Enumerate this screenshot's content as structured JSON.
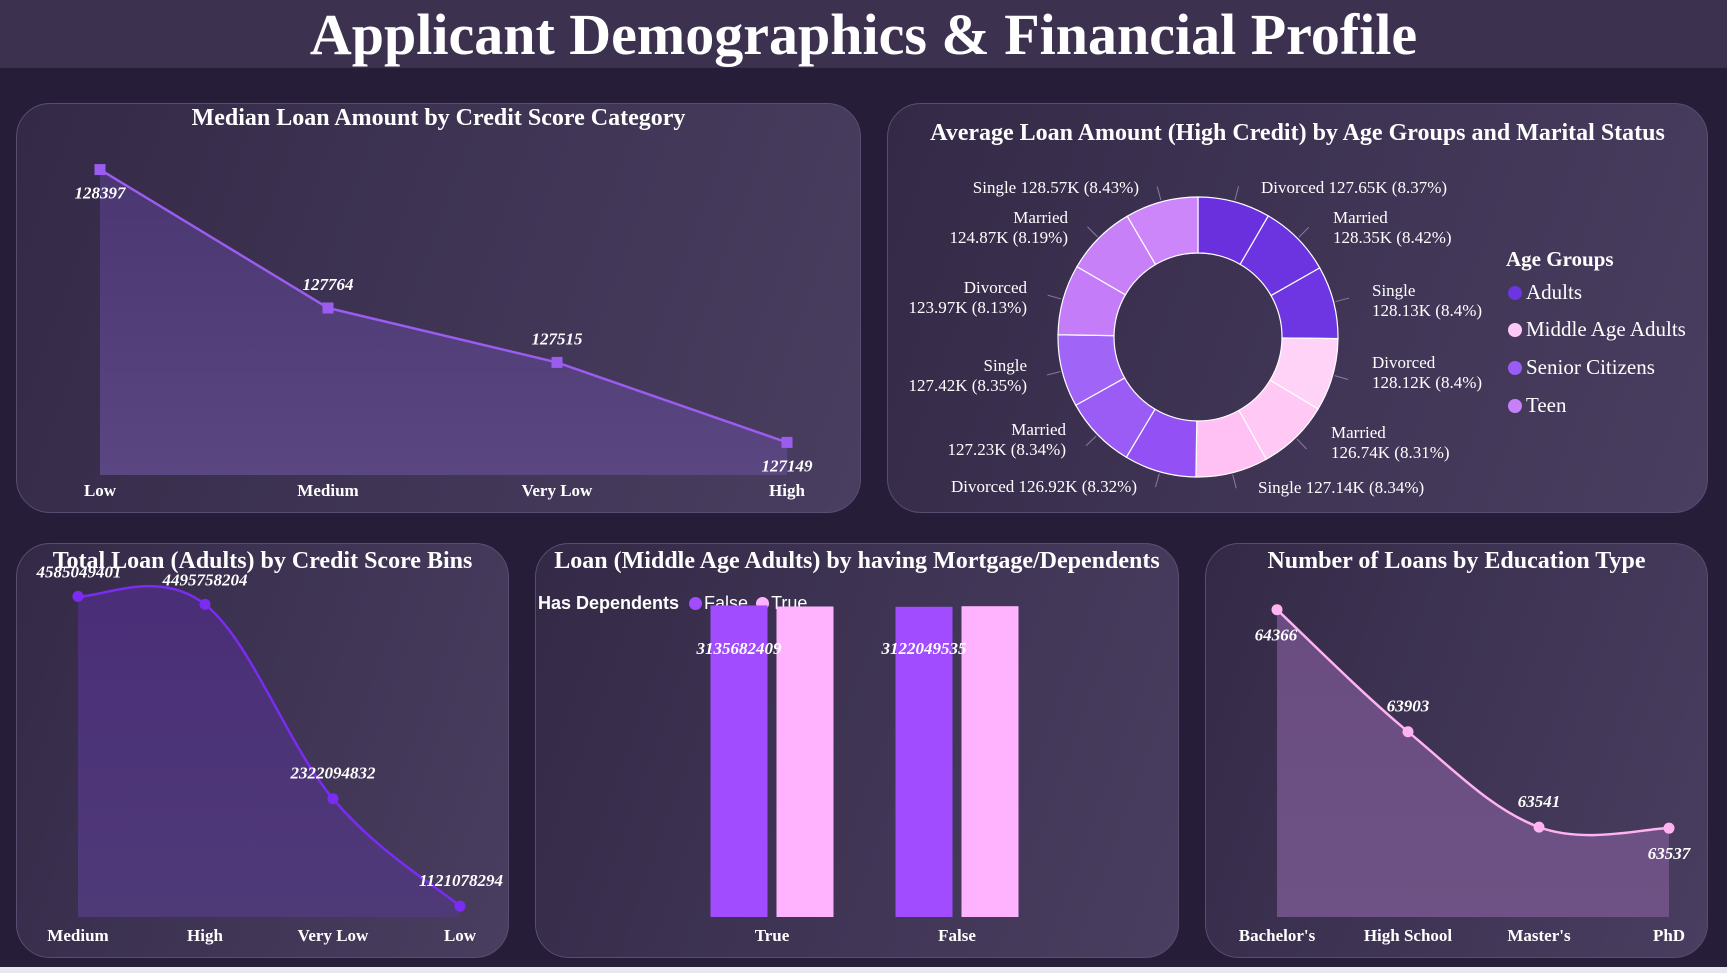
{
  "title": "Applicant Demographics & Financial Profile",
  "colors": {
    "background": "#261e38",
    "header": "#3d3150",
    "line_purple": "#9b5cf0",
    "line_violet": "#7a2cf2",
    "line_pink": "#ffb3f0",
    "false_bar": "#a14cff",
    "true_bar": "#ffb3ff"
  },
  "charts": {
    "median": {
      "title": "Median Loan Amount by Credit Score Category"
    },
    "donut": {
      "title": "Average Loan Amount (High Credit) by Age Groups and Marital Status",
      "legend_title": "Age Groups",
      "legend": [
        {
          "label": "Adults",
          "color": "#6c35e0"
        },
        {
          "label": "Middle Age Adults",
          "color": "#ffc8f5"
        },
        {
          "label": "Senior Citizens",
          "color": "#9a5cf5"
        },
        {
          "label": "Teen",
          "color": "#c880f8"
        }
      ],
      "labels": {
        "l0": "Divorced 127.65K (8.37%)",
        "l1a": "Married",
        "l1b": "128.35K (8.42%)",
        "l2a": "Single",
        "l2b": "128.13K (8.4%)",
        "l3a": "Divorced",
        "l3b": "128.12K (8.4%)",
        "l4a": "Married",
        "l4b": "126.74K (8.31%)",
        "l5": "Single 127.14K (8.34%)",
        "l6": "Divorced 126.92K (8.32%)",
        "l7a": "Married",
        "l7b": "127.23K (8.34%)",
        "l8a": "Single",
        "l8b": "127.42K (8.35%)",
        "l9a": "Divorced",
        "l9b": "123.97K (8.13%)",
        "l10a": "Married",
        "l10b": "124.87K (8.19%)",
        "l11": "Single 128.57K (8.43%)"
      }
    },
    "adults": {
      "title": "Total Loan (Adults) by Credit Score Bins"
    },
    "mortgage": {
      "title": "Loan (Middle Age Adults) by having Mortgage/Dependents",
      "legend_title": "Has Dependents",
      "legend_false": "False",
      "legend_true": "True"
    },
    "education": {
      "title": "Number of Loans by Education Type"
    }
  },
  "chart_data": [
    {
      "type": "area",
      "title": "Median Loan Amount by Credit Score Category",
      "categories": [
        "Low",
        "Medium",
        "Very Low",
        "High"
      ],
      "values": [
        128397,
        127764,
        127515,
        127149
      ],
      "ylim": [
        127000,
        128450
      ]
    },
    {
      "type": "pie",
      "title": "Average Loan Amount (High Credit) by Age Groups and Marital Status",
      "slices": [
        {
          "group": "Adults",
          "status": "Divorced",
          "value": 127.65,
          "percent": 8.37
        },
        {
          "group": "Adults",
          "status": "Married",
          "value": 128.35,
          "percent": 8.42
        },
        {
          "group": "Adults",
          "status": "Single",
          "value": 128.13,
          "percent": 8.4
        },
        {
          "group": "Middle Age Adults",
          "status": "Divorced",
          "value": 128.12,
          "percent": 8.4
        },
        {
          "group": "Middle Age Adults",
          "status": "Married",
          "value": 126.74,
          "percent": 8.31
        },
        {
          "group": "Middle Age Adults",
          "status": "Single",
          "value": 127.14,
          "percent": 8.34
        },
        {
          "group": "Senior Citizens",
          "status": "Divorced",
          "value": 126.92,
          "percent": 8.32
        },
        {
          "group": "Senior Citizens",
          "status": "Married",
          "value": 127.23,
          "percent": 8.34
        },
        {
          "group": "Senior Citizens",
          "status": "Single",
          "value": 127.42,
          "percent": 8.35
        },
        {
          "group": "Teen",
          "status": "Divorced",
          "value": 123.97,
          "percent": 8.13
        },
        {
          "group": "Teen",
          "status": "Married",
          "value": 124.87,
          "percent": 8.19
        },
        {
          "group": "Teen",
          "status": "Single",
          "value": 128.57,
          "percent": 8.43
        }
      ]
    },
    {
      "type": "area",
      "title": "Total Loan (Adults) by Credit Score Bins",
      "categories": [
        "Medium",
        "High",
        "Very Low",
        "Low"
      ],
      "values": [
        4585049401,
        4495758204,
        2322094832,
        1121078294
      ],
      "ylim": [
        1000000000,
        4600000000
      ]
    },
    {
      "type": "bar",
      "title": "Loan (Middle Age Adults) by having Mortgage/Dependents",
      "categories": [
        "True",
        "False"
      ],
      "series": [
        {
          "name": "False",
          "values": [
            3135682409,
            3122049535
          ]
        },
        {
          "name": "True",
          "values": [
            3125000000,
            3128000000
          ]
        }
      ],
      "data_labels": [
        "3135682409",
        "3122049535"
      ]
    },
    {
      "type": "area",
      "title": "Number of Loans by Education Type",
      "categories": [
        "Bachelor's",
        "High School",
        "Master's",
        "PhD"
      ],
      "values": [
        64366,
        63903,
        63541,
        63537
      ],
      "ylim": [
        63200,
        64380
      ]
    }
  ]
}
